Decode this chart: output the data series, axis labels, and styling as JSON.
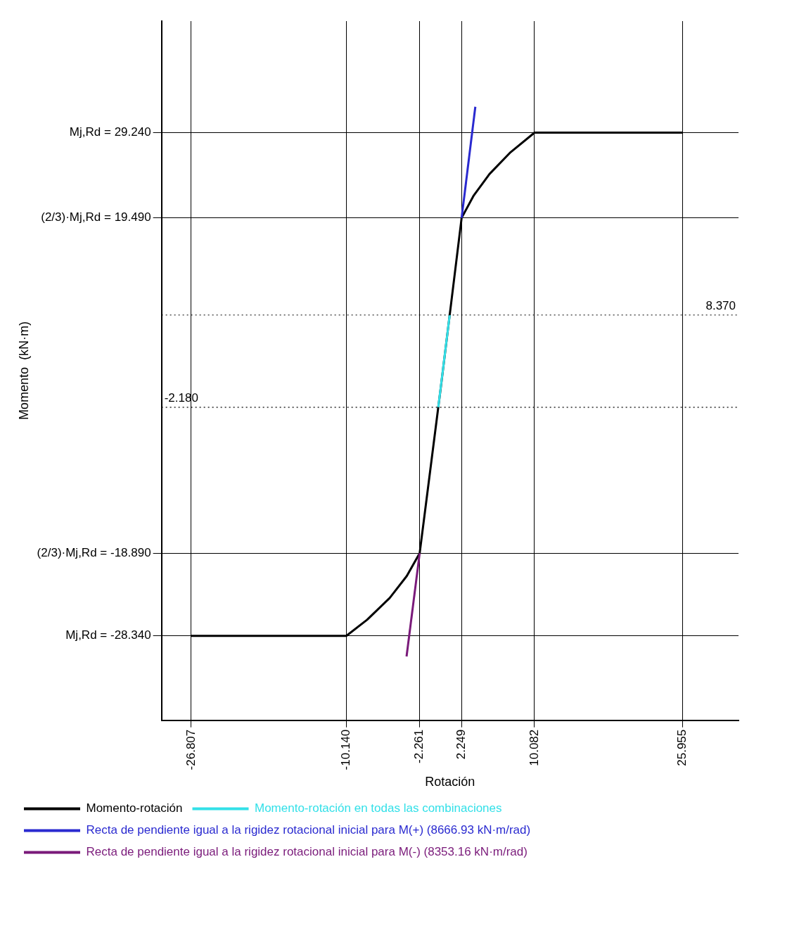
{
  "chart_data": {
    "type": "line",
    "xlabel": "Rotación",
    "ylabel": "Momento  (kN·m)",
    "xlim": [
      -30,
      32
    ],
    "ylim": [
      -38,
      42
    ],
    "xticks": [
      {
        "value": -26.807,
        "label": "-26.807"
      },
      {
        "value": -10.14,
        "label": "-10.140"
      },
      {
        "value": -2.261,
        "label": "-2.261"
      },
      {
        "value": 2.249,
        "label": "2.249"
      },
      {
        "value": 10.082,
        "label": "10.082"
      },
      {
        "value": 25.955,
        "label": "25.955"
      }
    ],
    "yticks": [
      {
        "value": 29.24,
        "label": "Mj,Rd = 29.240"
      },
      {
        "value": 19.49,
        "label": "(2/3)·Mj,Rd = 19.490"
      },
      {
        "value": -18.89,
        "label": "(2/3)·Mj,Rd = -18.890"
      },
      {
        "value": -28.34,
        "label": "Mj,Rd = -28.340"
      }
    ],
    "ref_lines": [
      {
        "axis": "y",
        "value": 8.37,
        "label": "8.370",
        "line_style": "dotted"
      },
      {
        "axis": "y",
        "value": -2.18,
        "label": "-2.180",
        "line_style": "dotted"
      }
    ],
    "grid": true,
    "legend": "bottom",
    "marker": "none",
    "line_style": "solid",
    "series": [
      {
        "name": "Momento-rotación",
        "color": "#000000",
        "x": [
          -26.807,
          -10.14,
          -7.91,
          -5.48,
          -3.65,
          -2.261,
          0,
          2.249,
          3.52,
          5.24,
          7.51,
          10.082,
          25.955
        ],
        "values": [
          -28.34,
          -28.34,
          -26.5,
          -24,
          -21.5,
          -18.89,
          0,
          19.49,
          22,
          24.5,
          27,
          29.24,
          29.24
        ]
      },
      {
        "name": "Momento-rotación en todas las combinaciones",
        "color": "#33e0e8",
        "x": [
          -0.261,
          0.966
        ],
        "values": [
          -2.18,
          8.37
        ]
      },
      {
        "name": "Recta de pendiente igual a la rigidez rotacional inicial para M(+) (8666.93 kN·m/rad)",
        "color": "#2a2ad0",
        "x": [
          2.249,
          3.72
        ],
        "values": [
          19.49,
          32.2
        ]
      },
      {
        "name": "Recta de pendiente igual a la rigidez rotacional inicial para M(-) (8353.16 kN·m/rad)",
        "color": "#7a1a7a",
        "x": [
          -2.261,
          -3.67
        ],
        "values": [
          -18.89,
          -30.7
        ]
      }
    ]
  }
}
